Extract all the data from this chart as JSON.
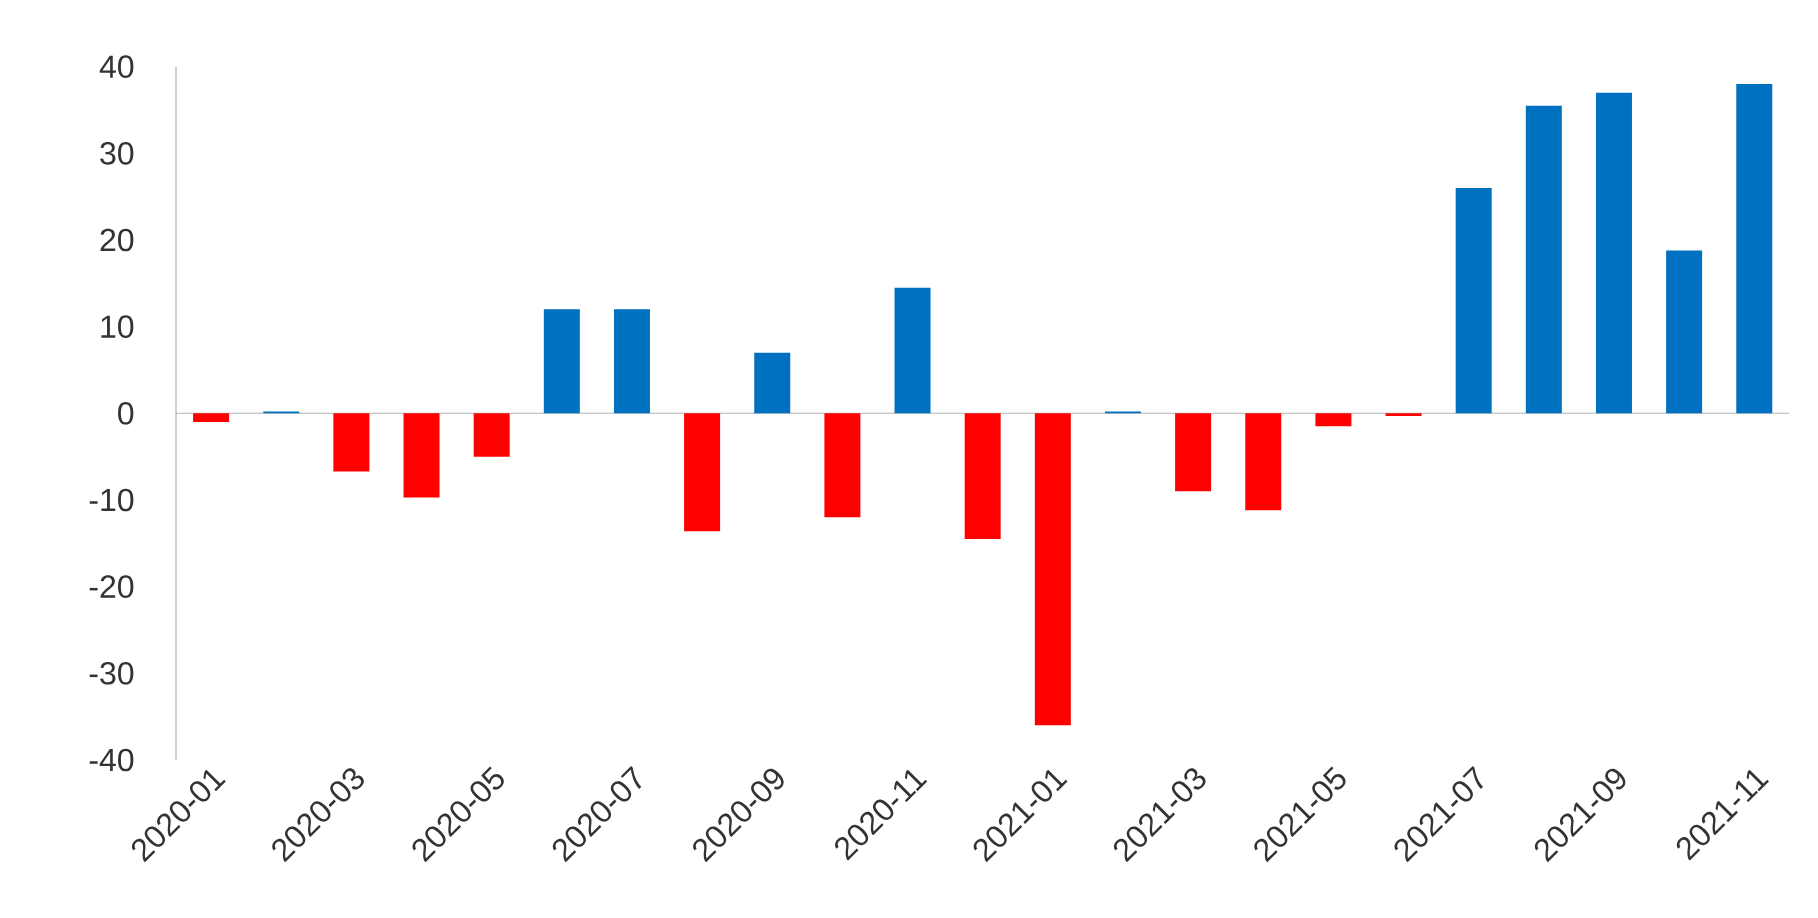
{
  "chart_data": {
    "type": "bar",
    "categories": [
      "2020-01",
      null,
      "2020-03",
      null,
      "2020-05",
      null,
      "2020-07",
      null,
      "2020-09",
      null,
      "2020-11",
      null,
      "2021-01",
      null,
      "2021-03",
      null,
      "2021-05",
      null,
      "2021-07",
      null,
      "2021-09",
      null,
      "2021-11"
    ],
    "values": [
      -1,
      0.2,
      -6.7,
      -9.7,
      -5,
      12,
      12,
      -13.6,
      7,
      -12,
      14.5,
      -14.5,
      -36,
      0.2,
      -9,
      -11.2,
      -1.5,
      -0.3,
      26,
      35.5,
      37,
      18.8,
      38
    ],
    "colors": [
      "#ff0000",
      "#0070c0",
      "#ff0000",
      "#ff0000",
      "#ff0000",
      "#0070c0",
      "#0070c0",
      "#ff0000",
      "#0070c0",
      "#ff0000",
      "#0070c0",
      "#ff0000",
      "#ff0000",
      "#0070c0",
      "#ff0000",
      "#ff0000",
      "#ff0000",
      "#ff0000",
      "#0070c0",
      "#0070c0",
      "#0070c0",
      "#0070c0",
      "#0070c0"
    ],
    "ylim": [
      -40,
      40
    ],
    "yticks": [
      -40,
      -30,
      -20,
      -10,
      0,
      10,
      20,
      30,
      40
    ]
  }
}
